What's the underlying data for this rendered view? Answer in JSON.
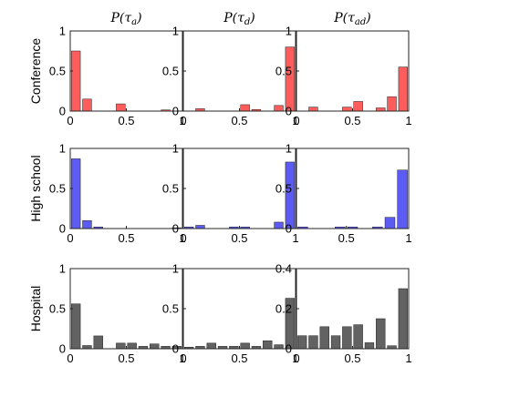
{
  "column_titles": [
    "P(τa)",
    "P(τd)",
    "P(τad)"
  ],
  "row_labels": [
    "Conference",
    "High school",
    "Hospital"
  ],
  "colors": {
    "Conference": "#ff5c5c",
    "High school": "#5c5cf5",
    "Hospital": "#626262"
  },
  "chart_data": [
    {
      "type": "bar",
      "row": "Conference",
      "column": "P(τa)",
      "x": [
        0.05,
        0.15,
        0.25,
        0.35,
        0.45,
        0.55,
        0.65,
        0.75,
        0.85,
        0.95
      ],
      "values": [
        0.75,
        0.15,
        0,
        0,
        0.09,
        0,
        0,
        0,
        0.015,
        0
      ],
      "xlim": [
        0,
        1
      ],
      "ylim": [
        0,
        1
      ],
      "xticks": [
        0,
        0.5,
        1
      ],
      "yticks": [
        0,
        0.5,
        1
      ],
      "xtick_labels": [
        "0",
        "0.5",
        "1"
      ],
      "ytick_labels": [
        "0",
        "0.5",
        "1"
      ]
    },
    {
      "type": "bar",
      "row": "Conference",
      "column": "P(τd)",
      "x": [
        0.05,
        0.15,
        0.25,
        0.35,
        0.45,
        0.55,
        0.65,
        0.75,
        0.85,
        0.95
      ],
      "values": [
        0,
        0.03,
        0,
        0,
        0,
        0.08,
        0.02,
        0,
        0.07,
        0.8
      ],
      "xlim": [
        0,
        1
      ],
      "ylim": [
        0,
        1
      ],
      "xticks": [
        0,
        0.5,
        1
      ],
      "yticks": [
        0,
        0.5,
        1
      ],
      "xtick_labels": [
        "0",
        "0.5",
        "1"
      ],
      "ytick_labels": [
        "0",
        "0.5",
        "1"
      ]
    },
    {
      "type": "bar",
      "row": "Conference",
      "column": "P(τad)",
      "x": [
        0.05,
        0.15,
        0.25,
        0.35,
        0.45,
        0.55,
        0.65,
        0.75,
        0.85,
        0.95
      ],
      "values": [
        0,
        0.05,
        0,
        0,
        0.05,
        0.12,
        0,
        0.04,
        0.18,
        0.55
      ],
      "xlim": [
        0,
        1
      ],
      "ylim": [
        0,
        1
      ],
      "xticks": [
        0,
        0.5,
        1
      ],
      "yticks": [
        0,
        0.5,
        1
      ],
      "xtick_labels": [
        "0",
        "0.5",
        "1"
      ],
      "ytick_labels": [
        "0",
        "0.5",
        "1"
      ]
    },
    {
      "type": "bar",
      "row": "High school",
      "column": "P(τa)",
      "x": [
        0.05,
        0.15,
        0.25,
        0.35,
        0.45,
        0.55,
        0.65,
        0.75,
        0.85,
        0.95
      ],
      "values": [
        0.87,
        0.1,
        0.02,
        0,
        0,
        0,
        0,
        0,
        0,
        0.01
      ],
      "xlim": [
        0,
        1
      ],
      "ylim": [
        0,
        1
      ],
      "xticks": [
        0,
        0.5,
        1
      ],
      "yticks": [
        0,
        0.5,
        1
      ],
      "xtick_labels": [
        "0",
        "0.5",
        "1"
      ],
      "ytick_labels": [
        "0",
        "0.5",
        "1"
      ]
    },
    {
      "type": "bar",
      "row": "High school",
      "column": "P(τd)",
      "x": [
        0.05,
        0.15,
        0.25,
        0.35,
        0.45,
        0.55,
        0.65,
        0.75,
        0.85,
        0.95
      ],
      "values": [
        0.02,
        0.04,
        0,
        0,
        0.02,
        0.02,
        0,
        0,
        0.08,
        0.83
      ],
      "xlim": [
        0,
        1
      ],
      "ylim": [
        0,
        1
      ],
      "xticks": [
        0,
        0.5,
        1
      ],
      "yticks": [
        0,
        0.5,
        1
      ],
      "xtick_labels": [
        "0",
        "0.5",
        "1"
      ],
      "ytick_labels": [
        "0",
        "0.5",
        "1"
      ]
    },
    {
      "type": "bar",
      "row": "High school",
      "column": "P(τad)",
      "x": [
        0.15,
        0.25,
        0.35,
        0.45,
        0.55,
        0.65,
        0.75,
        0.85,
        0.95
      ],
      "values": [
        0.02,
        0,
        0,
        0.02,
        0.02,
        0,
        0.02,
        0.14,
        0.73
      ],
      "xlim": [
        0.1,
        1
      ],
      "ylim": [
        0,
        1
      ],
      "xticks": [
        0.5,
        1
      ],
      "yticks": [
        0,
        0.5,
        1
      ],
      "xtick_labels": [
        "0.5",
        "1"
      ],
      "ytick_labels": [
        "0",
        "0.5",
        "1"
      ]
    },
    {
      "type": "bar",
      "row": "Hospital",
      "column": "P(τa)",
      "x": [
        0.05,
        0.15,
        0.25,
        0.35,
        0.45,
        0.55,
        0.65,
        0.75,
        0.85,
        0.95
      ],
      "values": [
        0.56,
        0.04,
        0.16,
        0,
        0.07,
        0.07,
        0.03,
        0.06,
        0.03,
        0.03
      ],
      "xlim": [
        0,
        1
      ],
      "ylim": [
        0,
        1
      ],
      "xticks": [
        0,
        0.5,
        1
      ],
      "yticks": [
        0,
        0.5,
        1
      ],
      "xtick_labels": [
        "0",
        "0.5",
        "1"
      ],
      "ytick_labels": [
        "0",
        "0.5",
        "1"
      ]
    },
    {
      "type": "bar",
      "row": "Hospital",
      "column": "P(τd)",
      "x": [
        0.05,
        0.15,
        0.25,
        0.35,
        0.45,
        0.55,
        0.65,
        0.75,
        0.85,
        0.95
      ],
      "values": [
        0.02,
        0.03,
        0.07,
        0.03,
        0.03,
        0.07,
        0.03,
        0.1,
        0.05,
        0.63
      ],
      "xlim": [
        0,
        1
      ],
      "ylim": [
        0,
        1
      ],
      "xticks": [
        0,
        0.5,
        1
      ],
      "yticks": [
        0,
        0.5,
        1
      ],
      "xtick_labels": [
        "0",
        "0.5",
        "1"
      ],
      "ytick_labels": [
        "0",
        "0.5",
        "1"
      ]
    },
    {
      "type": "bar",
      "row": "Hospital",
      "column": "P(τad)",
      "x": [
        0.05,
        0.15,
        0.25,
        0.35,
        0.45,
        0.55,
        0.65,
        0.75,
        0.85,
        0.95
      ],
      "values": [
        0.065,
        0.065,
        0.11,
        0.065,
        0.11,
        0.12,
        0.03,
        0.15,
        0.015,
        0.3
      ],
      "xlim": [
        0,
        1
      ],
      "ylim": [
        0,
        0.4
      ],
      "xticks": [
        0,
        0.5,
        1
      ],
      "yticks": [
        0,
        0.2,
        0.4
      ],
      "xtick_labels": [
        "0",
        "0.5",
        "1"
      ],
      "ytick_labels": [
        "0",
        "0.2",
        "0.4"
      ]
    }
  ]
}
